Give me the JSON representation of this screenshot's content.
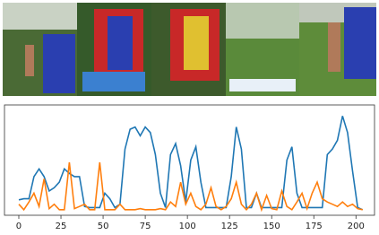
{
  "chart_data": {
    "type": "line",
    "x": [
      0,
      3,
      6,
      9,
      12,
      15,
      18,
      21,
      24,
      27,
      30,
      33,
      36,
      39,
      42,
      45,
      48,
      51,
      54,
      57,
      60,
      63,
      66,
      69,
      72,
      75,
      78,
      81,
      84,
      87,
      90,
      93,
      96,
      99,
      102,
      105,
      108,
      111,
      114,
      117,
      120,
      123,
      126,
      129,
      132,
      135,
      138,
      141,
      144,
      147,
      150,
      153,
      156,
      159,
      162,
      165,
      168,
      171,
      174,
      177,
      180,
      183,
      186,
      189,
      192,
      195,
      198,
      201,
      204
    ],
    "series": [
      {
        "color": "#1f77b4",
        "values": [
          0.14,
          0.15,
          0.15,
          0.35,
          0.42,
          0.35,
          0.22,
          0.25,
          0.3,
          0.42,
          0.38,
          0.35,
          0.35,
          0.08,
          0.07,
          0.07,
          0.07,
          0.2,
          0.15,
          0.07,
          0.1,
          0.6,
          0.78,
          0.8,
          0.72,
          0.8,
          0.75,
          0.55,
          0.2,
          0.07,
          0.55,
          0.65,
          0.45,
          0.12,
          0.5,
          0.62,
          0.3,
          0.07,
          0.07,
          0.07,
          0.07,
          0.07,
          0.35,
          0.8,
          0.6,
          0.07,
          0.07,
          0.2,
          0.07,
          0.07,
          0.07,
          0.07,
          0.07,
          0.5,
          0.62,
          0.2,
          0.07,
          0.07,
          0.07,
          0.07,
          0.07,
          0.55,
          0.6,
          0.68,
          0.9,
          0.75,
          0.4,
          0.07,
          0.05
        ]
      },
      {
        "color": "#ff7f0e",
        "values": [
          0.1,
          0.05,
          0.12,
          0.2,
          0.08,
          0.33,
          0.06,
          0.1,
          0.05,
          0.05,
          0.48,
          0.06,
          0.08,
          0.1,
          0.05,
          0.05,
          0.48,
          0.05,
          0.05,
          0.05,
          0.1,
          0.05,
          0.05,
          0.05,
          0.06,
          0.05,
          0.05,
          0.05,
          0.06,
          0.05,
          0.12,
          0.08,
          0.3,
          0.1,
          0.2,
          0.08,
          0.05,
          0.1,
          0.25,
          0.08,
          0.05,
          0.08,
          0.15,
          0.3,
          0.1,
          0.05,
          0.1,
          0.2,
          0.05,
          0.18,
          0.06,
          0.05,
          0.22,
          0.08,
          0.05,
          0.12,
          0.2,
          0.06,
          0.2,
          0.3,
          0.15,
          0.12,
          0.1,
          0.08,
          0.12,
          0.08,
          0.1,
          0.06,
          0.05
        ]
      }
    ],
    "xlim": [
      -8.5,
      211
    ],
    "ylim": [
      0,
      1
    ],
    "xticks": [
      0,
      25,
      50,
      75,
      100,
      125,
      150,
      175,
      200
    ]
  }
}
